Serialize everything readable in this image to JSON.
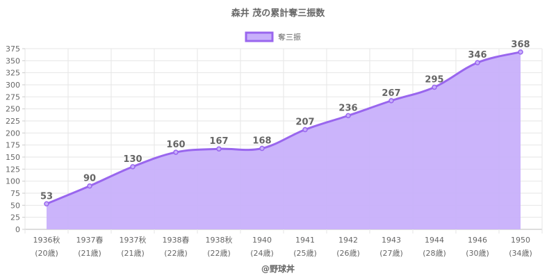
{
  "chart_data": {
    "type": "area",
    "title": "森井 茂の累計奪三振数",
    "legend": {
      "label": "奪三振",
      "position": "top"
    },
    "categories": [
      [
        "1936秋",
        "(20歳)"
      ],
      [
        "1937春",
        "(21歳)"
      ],
      [
        "1937秋",
        "(21歳)"
      ],
      [
        "1938春",
        "(22歳)"
      ],
      [
        "1938秋",
        "(22歳)"
      ],
      [
        "1940",
        "(24歳)"
      ],
      [
        "1941",
        "(25歳)"
      ],
      [
        "1942",
        "(26歳)"
      ],
      [
        "1943",
        "(27歳)"
      ],
      [
        "1944",
        "(28歳)"
      ],
      [
        "1946",
        "(30歳)"
      ],
      [
        "1950",
        "(34歳)"
      ]
    ],
    "series": [
      {
        "name": "奪三振",
        "values": [
          53,
          90,
          130,
          160,
          167,
          168,
          207,
          236,
          267,
          295,
          346,
          368
        ]
      }
    ],
    "ylim": [
      0,
      375
    ],
    "ytick_step": 25,
    "grid": true,
    "colors": {
      "line": "#9966ee",
      "fill": "#c8b0fb",
      "grid": "#e6e6e6",
      "text": "#666666"
    },
    "credit": "@野球丼"
  }
}
